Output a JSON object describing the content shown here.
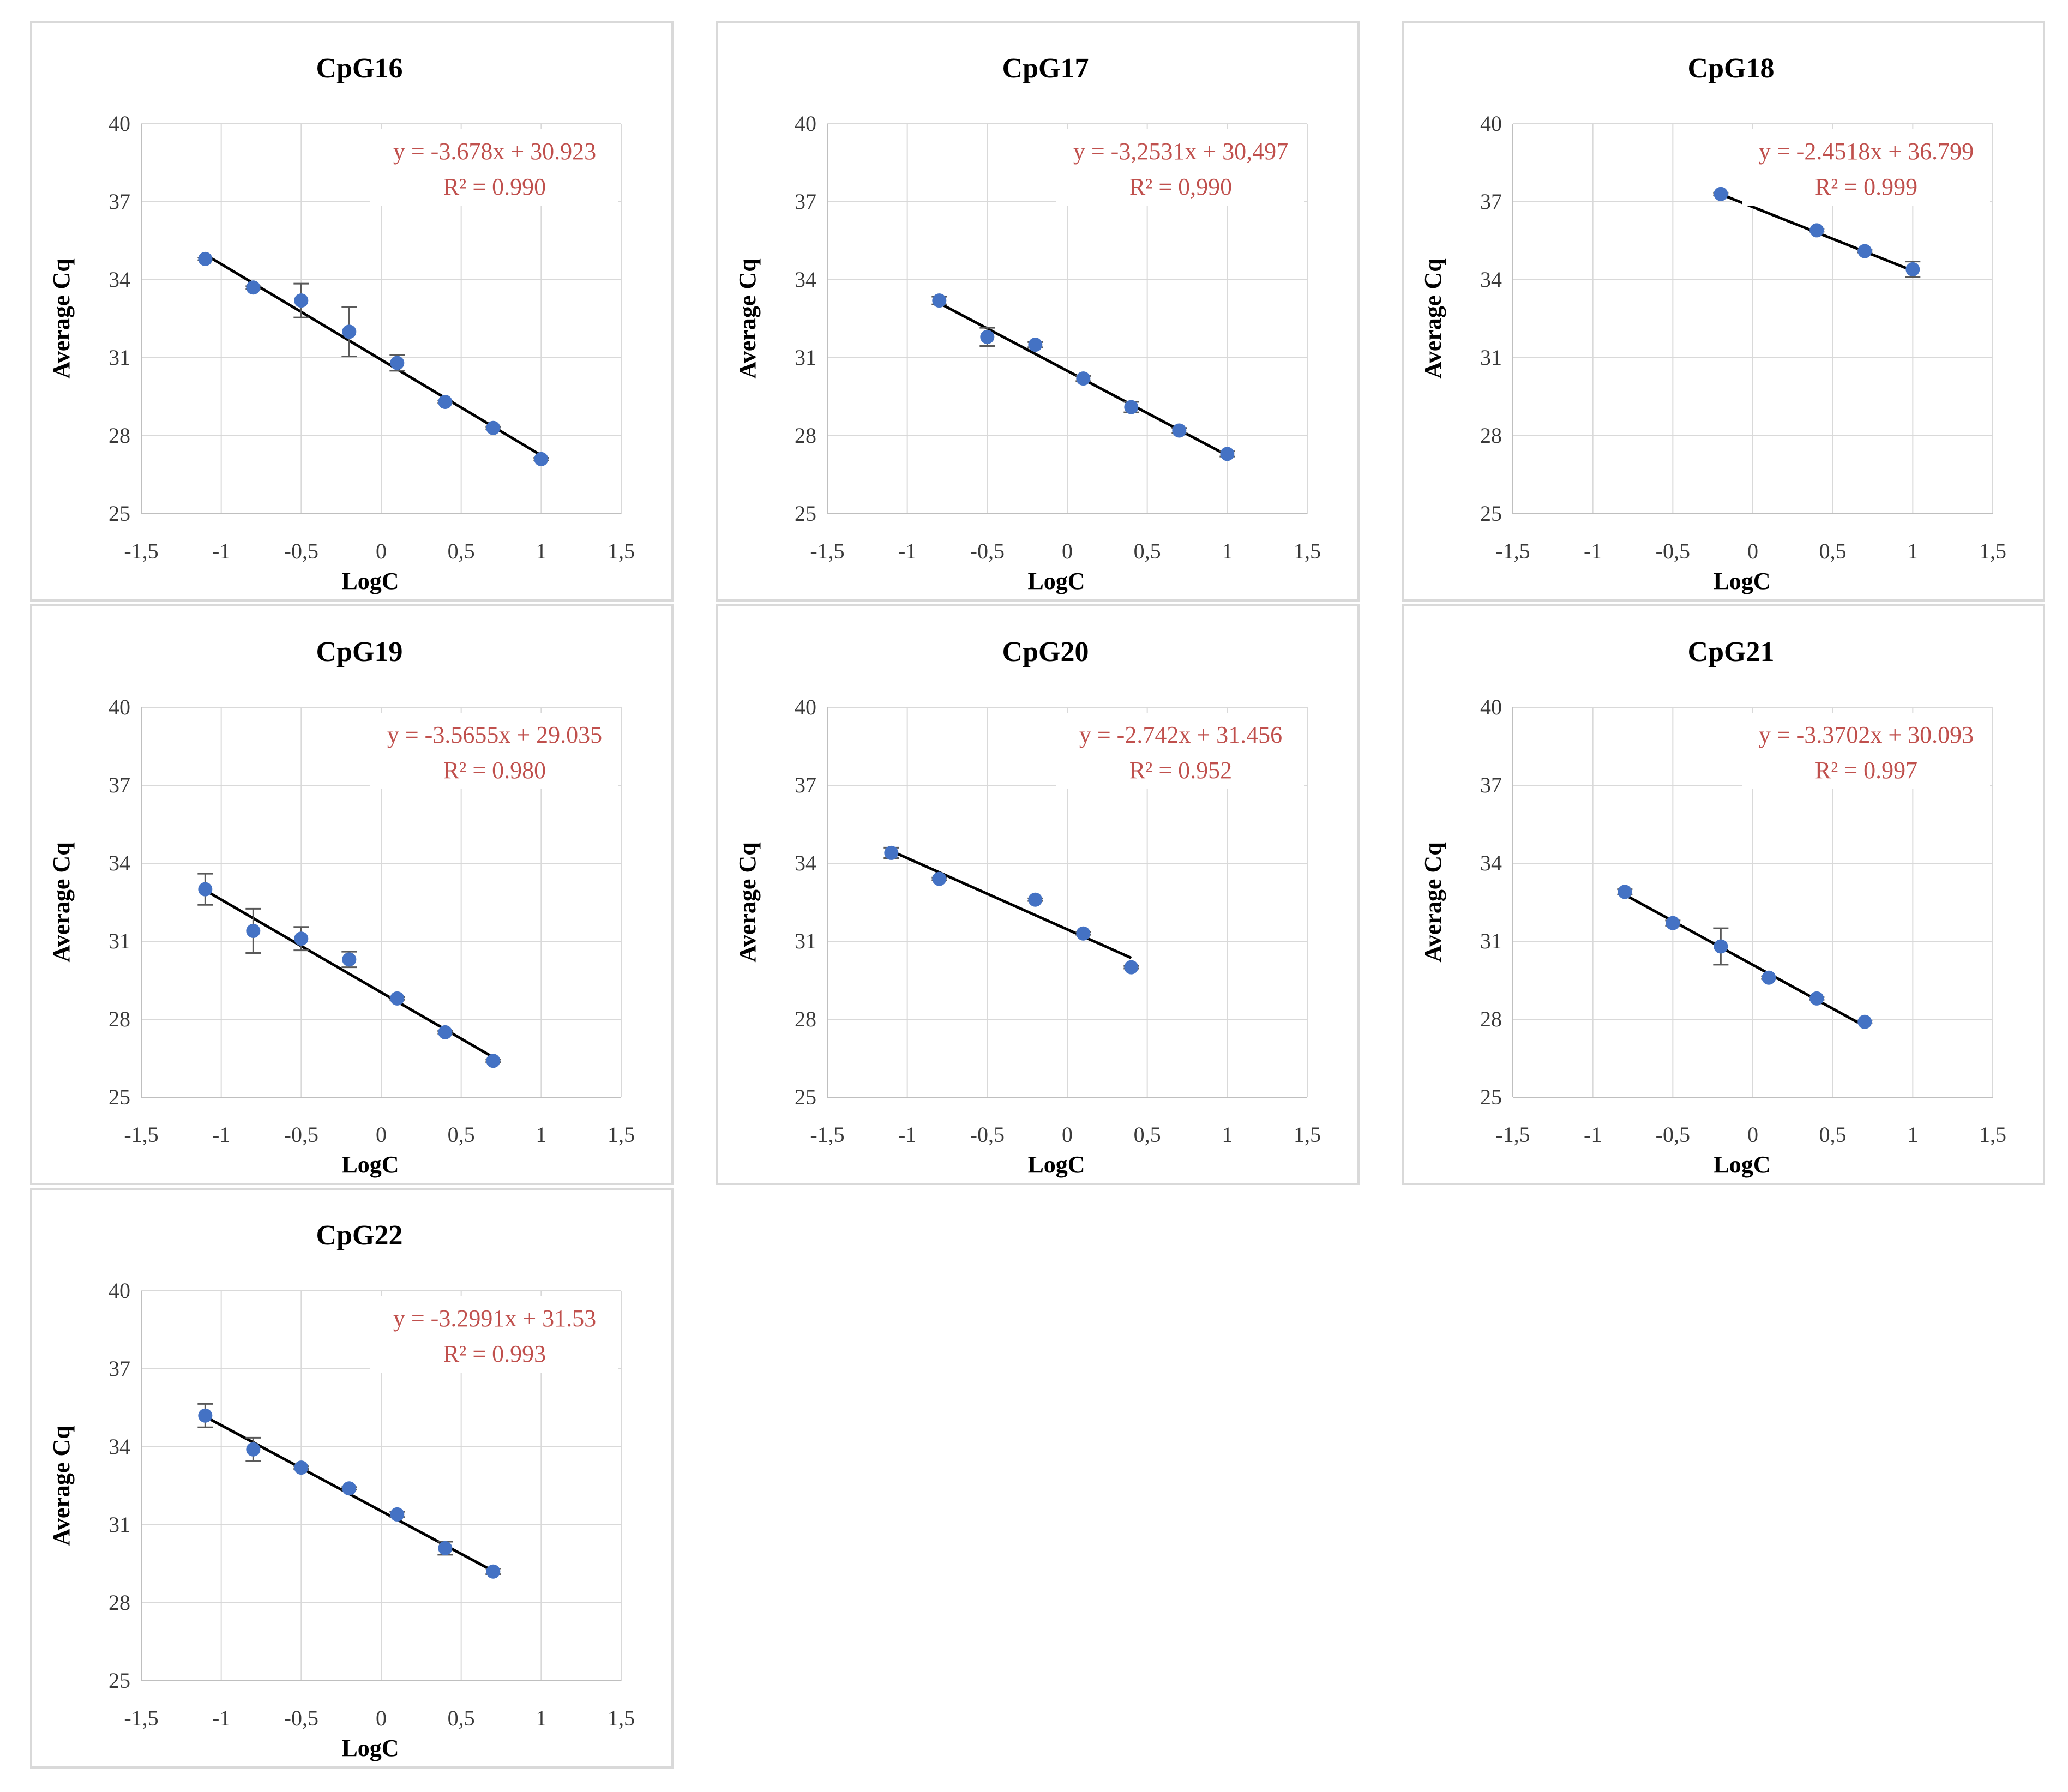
{
  "colors": {
    "point": "#4472c4",
    "trendline": "#000000",
    "equation": "#c0504d",
    "grid": "#d9d9d9"
  },
  "chart_data": [
    {
      "type": "scatter",
      "title": "CpG16",
      "xlabel": "LogC",
      "ylabel": "Average Cq",
      "xlim": [
        -1.5,
        1.5
      ],
      "ylim": [
        25,
        40
      ],
      "xticks": [
        -1.5,
        -1,
        -0.5,
        0,
        0.5,
        1,
        1.5
      ],
      "xtick_labels": [
        "-1,5",
        "-1",
        "-0,5",
        "0",
        "0,5",
        "1",
        "1,5"
      ],
      "yticks": [
        25,
        28,
        31,
        34,
        37,
        40
      ],
      "ytick_labels": [
        "25",
        "28",
        "31",
        "34",
        "37",
        "40"
      ],
      "grid": true,
      "legend": "none",
      "x": [
        -1.1,
        -0.8,
        -0.5,
        -0.2,
        0.1,
        0.4,
        0.7,
        1.0
      ],
      "y": [
        34.8,
        33.7,
        33.2,
        32.0,
        30.8,
        29.3,
        28.3,
        27.1
      ],
      "yerr": [
        0.05,
        0.05,
        0.65,
        0.95,
        0.3,
        0.05,
        0.05,
        0.05
      ],
      "trendline": {
        "slope": -3.678,
        "intercept": 30.923,
        "x_range": [
          -1.1,
          1.0
        ]
      },
      "equation": "y = -3.678x + 30.923",
      "r2": "R² = 0.990"
    },
    {
      "type": "scatter",
      "title": "CpG17",
      "xlabel": "LogC",
      "ylabel": "Average Cq",
      "xlim": [
        -1.5,
        1.5
      ],
      "ylim": [
        25,
        40
      ],
      "xticks": [
        -1.5,
        -1,
        -0.5,
        0,
        0.5,
        1,
        1.5
      ],
      "xtick_labels": [
        "-1,5",
        "-1",
        "-0,5",
        "0",
        "0,5",
        "1",
        "1,5"
      ],
      "yticks": [
        25,
        28,
        31,
        34,
        37,
        40
      ],
      "ytick_labels": [
        "25",
        "28",
        "31",
        "34",
        "37",
        "40"
      ],
      "grid": true,
      "legend": "none",
      "x": [
        -0.8,
        -0.5,
        -0.2,
        0.1,
        0.4,
        0.7,
        1.0
      ],
      "y": [
        33.2,
        31.8,
        31.5,
        30.2,
        29.1,
        28.2,
        27.3
      ],
      "yerr": [
        0.15,
        0.35,
        0.1,
        0.1,
        0.2,
        0.1,
        0.1
      ],
      "trendline": {
        "slope": -3.2531,
        "intercept": 30.497,
        "x_range": [
          -0.8,
          1.0
        ]
      },
      "equation": "y = -3,2531x + 30,497",
      "r2": "R² = 0,990"
    },
    {
      "type": "scatter",
      "title": "CpG18",
      "xlabel": "LogC",
      "ylabel": "Average Cq",
      "xlim": [
        -1.5,
        1.5
      ],
      "ylim": [
        25,
        40
      ],
      "xticks": [
        -1.5,
        -1,
        -0.5,
        0,
        0.5,
        1,
        1.5
      ],
      "xtick_labels": [
        "-1,5",
        "-1",
        "-0,5",
        "0",
        "0,5",
        "1",
        "1,5"
      ],
      "yticks": [
        25,
        28,
        31,
        34,
        37,
        40
      ],
      "ytick_labels": [
        "25",
        "28",
        "31",
        "34",
        "37",
        "40"
      ],
      "grid": true,
      "legend": "none",
      "x": [
        -0.2,
        0.4,
        0.7,
        1.0
      ],
      "y": [
        37.3,
        35.9,
        35.1,
        34.4
      ],
      "yerr": [
        0.05,
        0.05,
        0.05,
        0.3
      ],
      "trendline": {
        "slope": -2.4518,
        "intercept": 36.799,
        "x_range": [
          -0.2,
          1.0
        ]
      },
      "equation": "y = -2.4518x + 36.799",
      "r2": "R² = 0.999"
    },
    {
      "type": "scatter",
      "title": "CpG19",
      "xlabel": "LogC",
      "ylabel": "Average Cq",
      "xlim": [
        -1.5,
        1.5
      ],
      "ylim": [
        25,
        40
      ],
      "xticks": [
        -1.5,
        -1,
        -0.5,
        0,
        0.5,
        1,
        1.5
      ],
      "xtick_labels": [
        "-1,5",
        "-1",
        "-0,5",
        "0",
        "0,5",
        "1",
        "1,5"
      ],
      "yticks": [
        25,
        28,
        31,
        34,
        37,
        40
      ],
      "ytick_labels": [
        "25",
        "28",
        "31",
        "34",
        "37",
        "40"
      ],
      "grid": true,
      "legend": "none",
      "x": [
        -1.1,
        -0.8,
        -0.5,
        -0.2,
        0.1,
        0.4,
        0.7
      ],
      "y": [
        33.0,
        31.4,
        31.1,
        30.3,
        28.8,
        27.5,
        26.4
      ],
      "yerr": [
        0.6,
        0.85,
        0.45,
        0.3,
        0.05,
        0.05,
        0.05
      ],
      "trendline": {
        "slope": -3.5655,
        "intercept": 29.035,
        "x_range": [
          -1.1,
          0.7
        ]
      },
      "equation": "y = -3.5655x + 29.035",
      "r2": "R² = 0.980"
    },
    {
      "type": "scatter",
      "title": "CpG20",
      "xlabel": "LogC",
      "ylabel": "Average Cq",
      "xlim": [
        -1.5,
        1.5
      ],
      "ylim": [
        25,
        40
      ],
      "xticks": [
        -1.5,
        -1,
        -0.5,
        0,
        0.5,
        1,
        1.5
      ],
      "xtick_labels": [
        "-1,5",
        "-1",
        "-0,5",
        "0",
        "0,5",
        "1",
        "1,5"
      ],
      "yticks": [
        25,
        28,
        31,
        34,
        37,
        40
      ],
      "ytick_labels": [
        "25",
        "28",
        "31",
        "34",
        "37",
        "40"
      ],
      "grid": true,
      "legend": "none",
      "x": [
        -1.1,
        -0.8,
        -0.2,
        0.1,
        0.4
      ],
      "y": [
        34.4,
        33.4,
        32.6,
        31.3,
        30.0
      ],
      "yerr": [
        0.2,
        0.05,
        0.05,
        0.05,
        0.05
      ],
      "trendline": {
        "slope": -2.742,
        "intercept": 31.456,
        "x_range": [
          -1.1,
          0.4
        ]
      },
      "equation": "y = -2.742x + 31.456",
      "r2": "R² = 0.952"
    },
    {
      "type": "scatter",
      "title": "CpG21",
      "xlabel": "LogC",
      "ylabel": "Average Cq",
      "xlim": [
        -1.5,
        1.5
      ],
      "ylim": [
        25,
        40
      ],
      "xticks": [
        -1.5,
        -1,
        -0.5,
        0,
        0.5,
        1,
        1.5
      ],
      "xtick_labels": [
        "-1,5",
        "-1",
        "-0,5",
        "0",
        "0,5",
        "1",
        "1,5"
      ],
      "yticks": [
        25,
        28,
        31,
        34,
        37,
        40
      ],
      "ytick_labels": [
        "25",
        "28",
        "31",
        "34",
        "37",
        "40"
      ],
      "grid": true,
      "legend": "none",
      "x": [
        -0.8,
        -0.5,
        -0.2,
        0.1,
        0.4,
        0.7
      ],
      "y": [
        32.9,
        31.7,
        30.8,
        29.6,
        28.8,
        27.9
      ],
      "yerr": [
        0.1,
        0.1,
        0.7,
        0.05,
        0.05,
        0.05
      ],
      "trendline": {
        "slope": -3.3702,
        "intercept": 30.093,
        "x_range": [
          -0.8,
          0.7
        ]
      },
      "equation": "y = -3.3702x + 30.093",
      "r2": "R² = 0.997"
    },
    {
      "type": "scatter",
      "title": "CpG22",
      "xlabel": "LogC",
      "ylabel": "Average Cq",
      "xlim": [
        -1.5,
        1.5
      ],
      "ylim": [
        25,
        40
      ],
      "xticks": [
        -1.5,
        -1,
        -0.5,
        0,
        0.5,
        1,
        1.5
      ],
      "xtick_labels": [
        "-1,5",
        "-1",
        "-0,5",
        "0",
        "0,5",
        "1",
        "1,5"
      ],
      "yticks": [
        25,
        28,
        31,
        34,
        37,
        40
      ],
      "ytick_labels": [
        "25",
        "28",
        "31",
        "34",
        "37",
        "40"
      ],
      "grid": true,
      "legend": "none",
      "x": [
        -1.1,
        -0.8,
        -0.5,
        -0.2,
        0.1,
        0.4,
        0.7
      ],
      "y": [
        35.2,
        33.9,
        33.2,
        32.4,
        31.4,
        30.1,
        29.2
      ],
      "yerr": [
        0.45,
        0.45,
        0.05,
        0.05,
        0.1,
        0.25,
        0.1
      ],
      "trendline": {
        "slope": -3.2991,
        "intercept": 31.53,
        "x_range": [
          -1.1,
          0.7
        ]
      },
      "equation": "y = -3.2991x + 31.53",
      "r2": "R² = 0.993"
    }
  ]
}
